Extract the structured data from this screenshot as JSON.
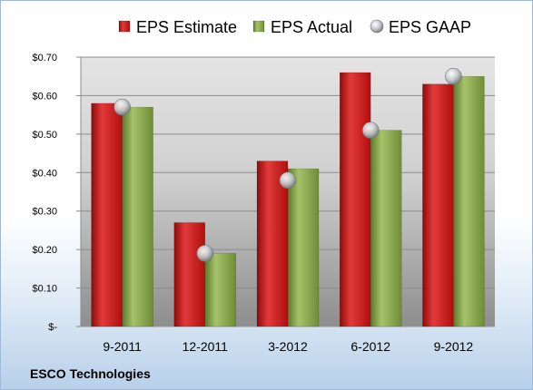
{
  "chart_data": {
    "type": "bar",
    "categories": [
      "9-2011",
      "12-2011",
      "3-2012",
      "6-2012",
      "9-2012"
    ],
    "series": [
      {
        "name": "EPS Estimate",
        "kind": "bar",
        "color": "#c00000",
        "values": [
          0.58,
          0.27,
          0.43,
          0.66,
          0.63
        ]
      },
      {
        "name": "EPS Actual",
        "kind": "bar",
        "color": "#76923c",
        "values": [
          0.57,
          0.19,
          0.41,
          0.51,
          0.65
        ]
      },
      {
        "name": "EPS GAAP",
        "kind": "marker",
        "color": "#bfc3c8",
        "values": [
          0.57,
          0.19,
          0.38,
          0.51,
          0.65
        ]
      }
    ],
    "y_ticks": [
      0,
      0.1,
      0.2,
      0.3,
      0.4,
      0.5,
      0.6,
      0.7
    ],
    "y_tick_labels": [
      "$-",
      "$0.10",
      "$0.20",
      "$0.30",
      "$0.40",
      "$0.50",
      "$0.60",
      "$0.70"
    ],
    "ylim": [
      0,
      0.7
    ],
    "grid": true,
    "legend_position": "top"
  },
  "footer": {
    "company": "ESCO Technologies"
  }
}
